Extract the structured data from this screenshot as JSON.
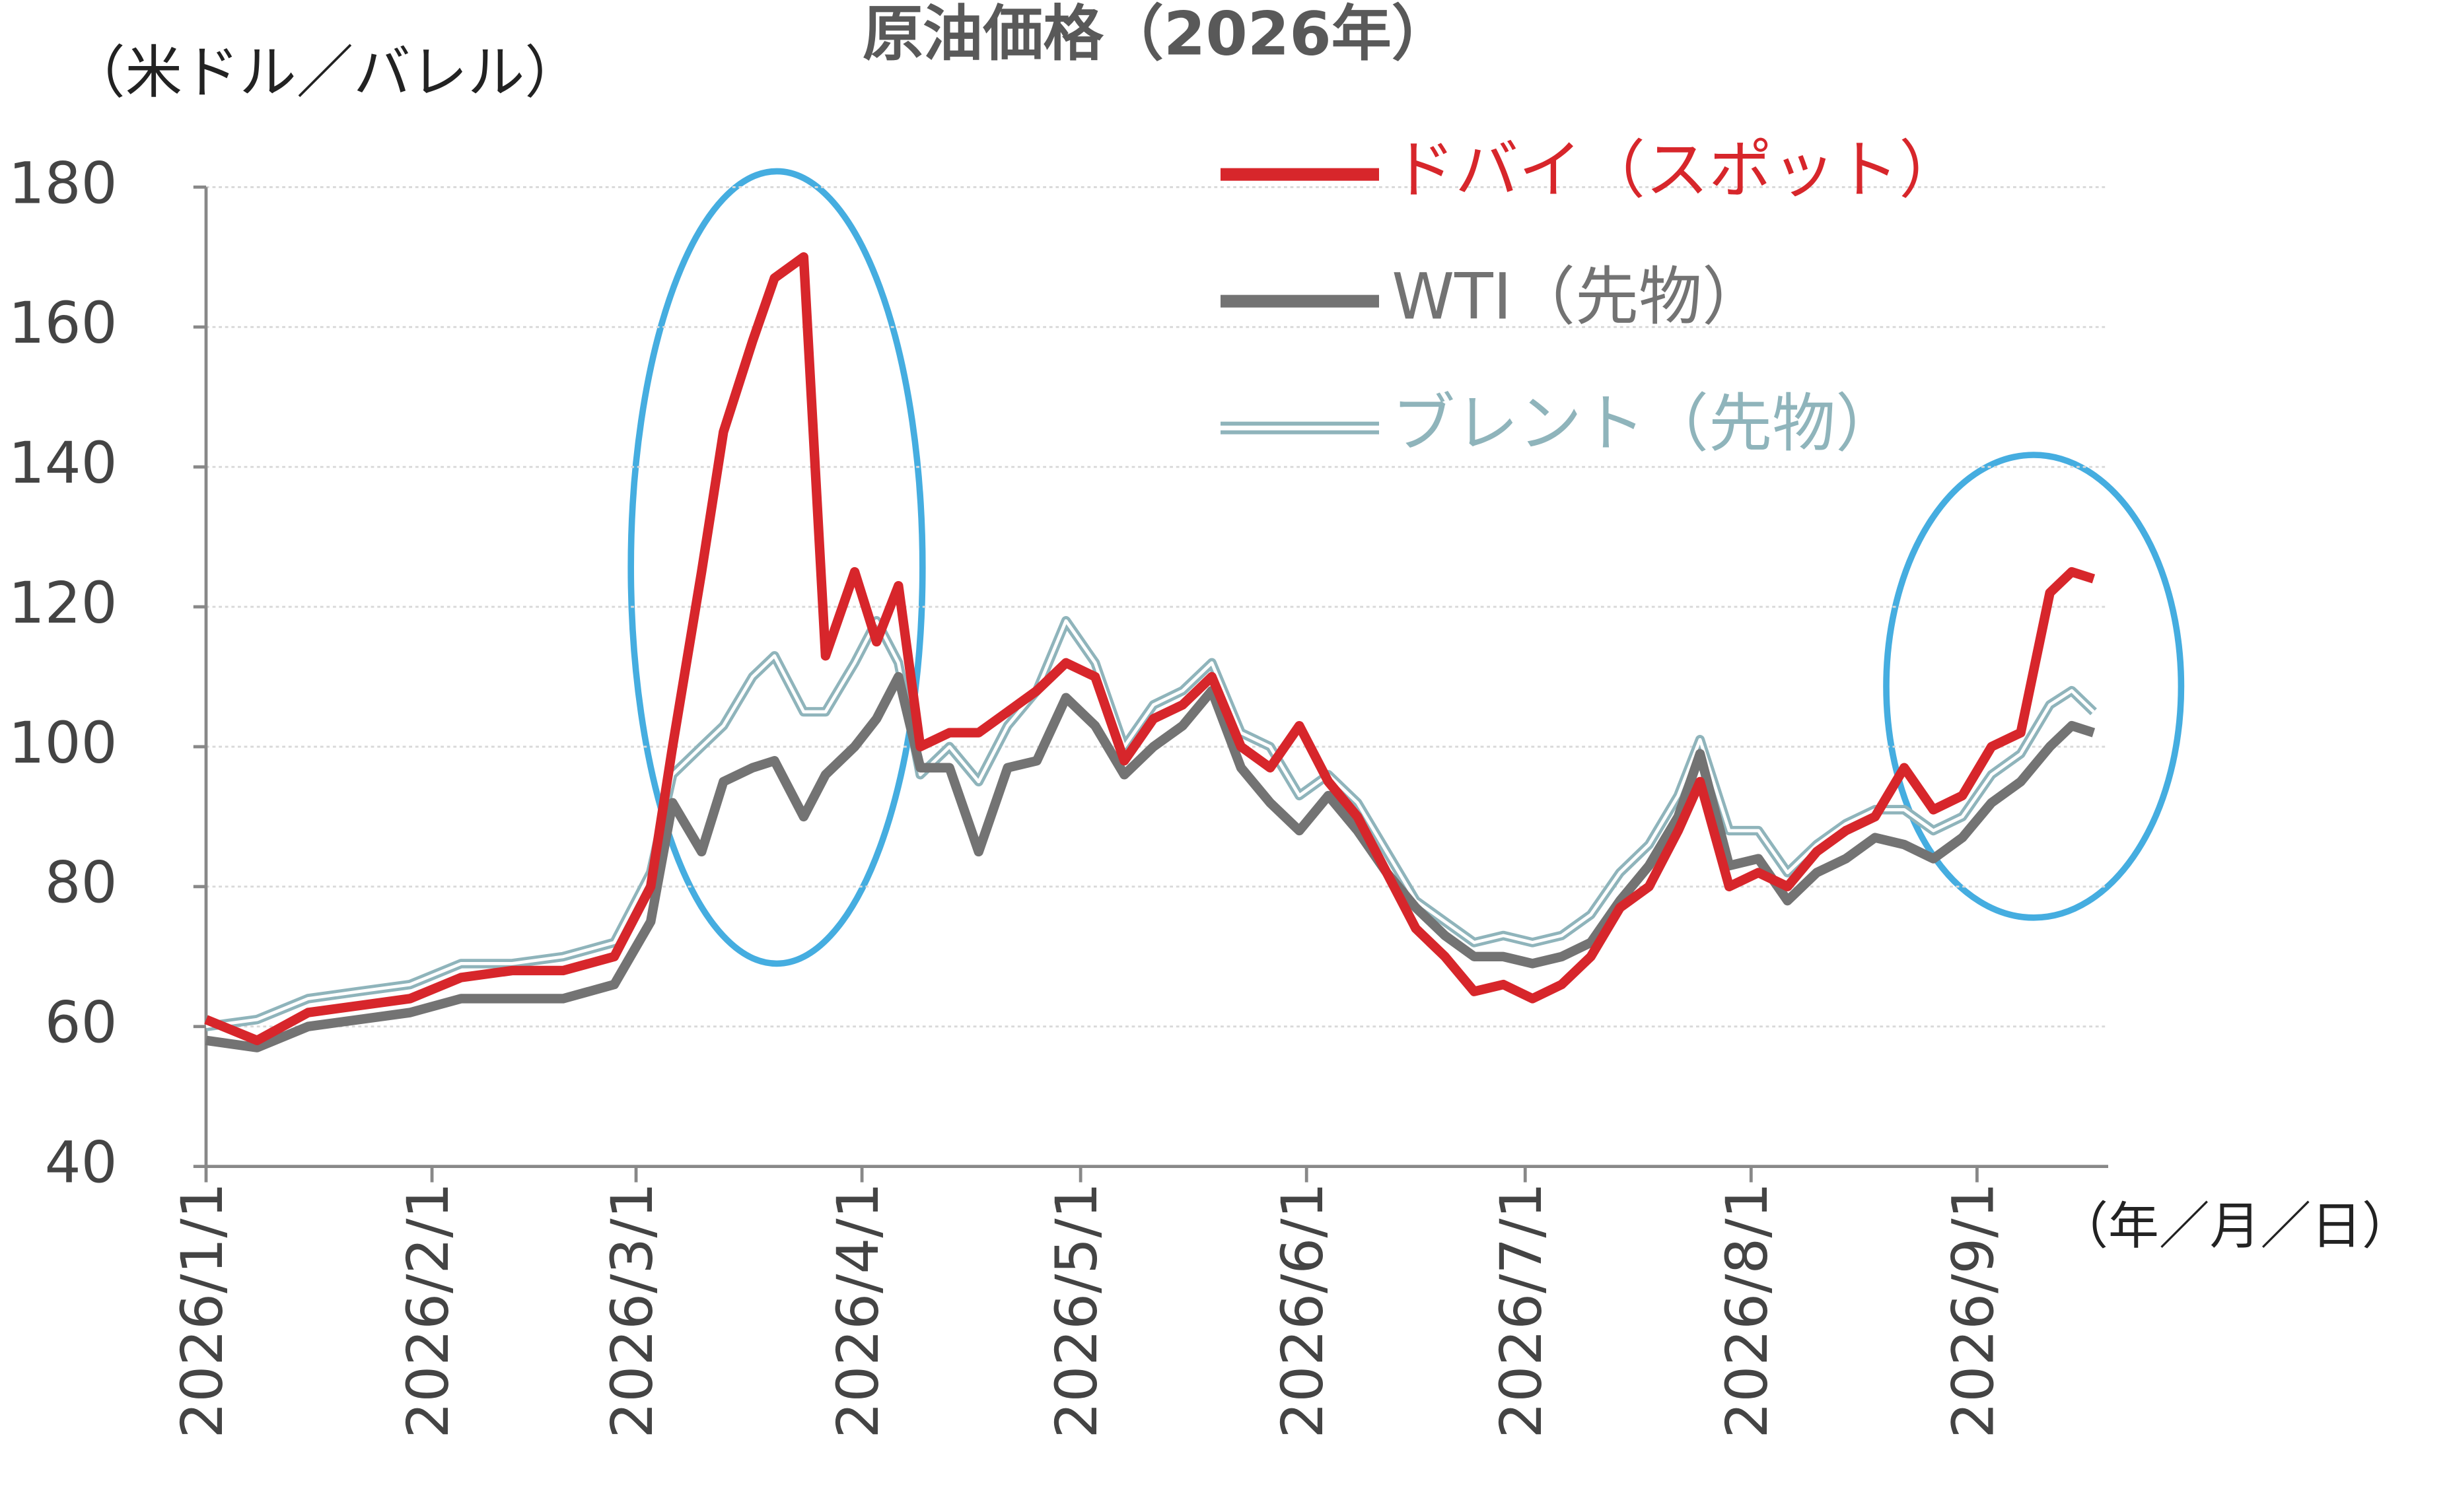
{
  "chart_data": {
    "type": "line",
    "title": "原油価格（2026年）",
    "y_label": "（米ドル／バレル）",
    "x_label": "（年／月／日）",
    "x": [
      "2026/1/1",
      "2026/1/8",
      "2026/1/15",
      "2026/1/22",
      "2026/1/29",
      "2026/2/5",
      "2026/2/12",
      "2026/2/19",
      "2026/2/26",
      "2026/3/3",
      "2026/3/6",
      "2026/3/10",
      "2026/3/13",
      "2026/3/17",
      "2026/3/20",
      "2026/3/24",
      "2026/3/27",
      "2026/3/31",
      "2026/4/3",
      "2026/4/6",
      "2026/4/9",
      "2026/4/13",
      "2026/4/17",
      "2026/4/21",
      "2026/4/25",
      "2026/4/29",
      "2026/5/3",
      "2026/5/7",
      "2026/5/11",
      "2026/5/15",
      "2026/5/19",
      "2026/5/23",
      "2026/5/27",
      "2026/5/31",
      "2026/6/4",
      "2026/6/8",
      "2026/6/12",
      "2026/6/16",
      "2026/6/20",
      "2026/6/24",
      "2026/6/28",
      "2026/7/2",
      "2026/7/6",
      "2026/7/10",
      "2026/7/14",
      "2026/7/18",
      "2026/7/22",
      "2026/7/25",
      "2026/7/29",
      "2026/8/2",
      "2026/8/6",
      "2026/8/10",
      "2026/8/14",
      "2026/8/18",
      "2026/8/22",
      "2026/8/26",
      "2026/8/30",
      "2026/9/3",
      "2026/9/7",
      "2026/9/11",
      "2026/9/14",
      "2026/9/17"
    ],
    "series": [
      {
        "name": "ドバイ（スポット）",
        "color": "#d7262b",
        "style": "thick",
        "values": [
          61,
          58,
          62,
          63,
          64,
          67,
          68,
          68,
          70,
          80,
          100,
          125,
          145,
          158,
          167,
          170,
          113,
          125,
          115,
          123,
          100,
          102,
          102,
          105,
          108,
          112,
          110,
          98,
          104,
          106,
          110,
          100,
          97,
          103,
          95,
          90,
          82,
          74,
          70,
          65,
          66,
          64,
          66,
          70,
          77,
          80,
          88,
          95,
          80,
          82,
          80,
          85,
          88,
          90,
          97,
          91,
          93,
          100,
          102,
          122,
          125,
          124
        ]
      },
      {
        "name": "WTI（先物）",
        "color": "#737373",
        "style": "thick",
        "values": [
          58,
          57,
          60,
          61,
          62,
          64,
          64,
          64,
          66,
          75,
          92,
          85,
          95,
          97,
          98,
          90,
          96,
          100,
          104,
          110,
          97,
          97,
          85,
          97,
          98,
          107,
          103,
          96,
          100,
          103,
          108,
          97,
          92,
          88,
          93,
          88,
          82,
          77,
          73,
          70,
          70,
          69,
          70,
          72,
          78,
          83,
          90,
          99,
          83,
          84,
          78,
          82,
          84,
          87,
          86,
          84,
          87,
          92,
          95,
          100,
          103,
          102
        ]
      },
      {
        "name": "ブレント（先物）",
        "color": "#8fb4bb",
        "style": "double",
        "values": [
          60,
          61,
          64,
          65,
          66,
          69,
          69,
          70,
          72,
          82,
          96,
          100,
          103,
          110,
          113,
          105,
          105,
          112,
          118,
          112,
          96,
          100,
          95,
          103,
          108,
          118,
          112,
          100,
          106,
          108,
          112,
          102,
          100,
          93,
          96,
          92,
          85,
          78,
          75,
          72,
          73,
          72,
          73,
          76,
          82,
          86,
          93,
          101,
          88,
          88,
          82,
          86,
          89,
          91,
          91,
          88,
          90,
          96,
          99,
          106,
          108,
          105
        ]
      }
    ],
    "xlim": [
      "2026/1/1",
      "2026/9/19"
    ],
    "xticks": [
      "2026/1/1",
      "2026/2/1",
      "2026/3/1",
      "2026/4/1",
      "2026/5/1",
      "2026/6/1",
      "2026/7/1",
      "2026/8/1",
      "2026/9/1"
    ],
    "ylim": [
      40,
      180
    ],
    "yticks": [
      40,
      60,
      80,
      100,
      120,
      140,
      160,
      180
    ],
    "grid": true,
    "legend": "upper right"
  }
}
